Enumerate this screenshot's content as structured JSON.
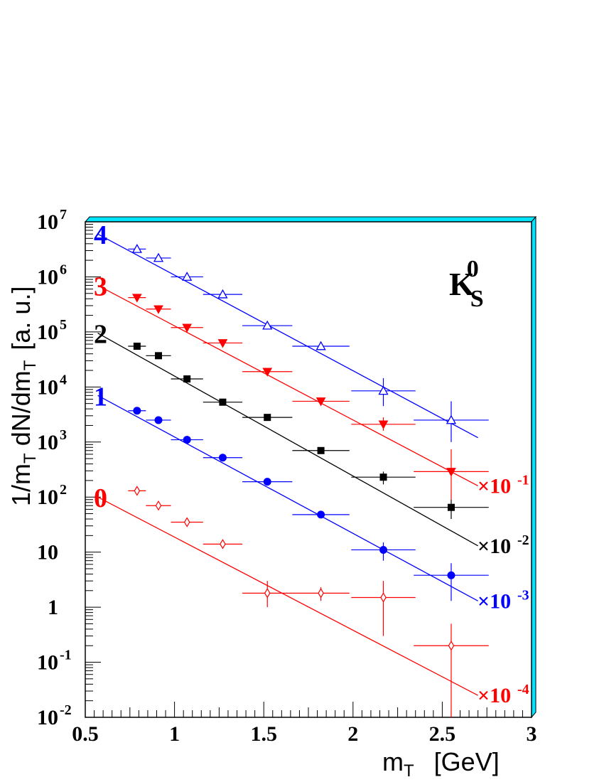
{
  "chart_data": {
    "type": "scatter",
    "title": "",
    "particle_label": {
      "main": "K",
      "sub": "S",
      "sup": "0"
    },
    "xlabel": {
      "main": "m",
      "sub": "T",
      "unit": "[GeV]"
    },
    "ylabel": {
      "main": "1/m",
      "sub1": "T",
      "mid": " dN/dm",
      "sub2": "T",
      "unit": "[a. u.]"
    },
    "xlim": [
      0.5,
      3
    ],
    "ylim": [
      0.01,
      10000000
    ],
    "yscale": "log",
    "x_ticks": [
      {
        "value": 0.5,
        "label": "0.5"
      },
      {
        "value": 1,
        "label": "1"
      },
      {
        "value": 1.5,
        "label": "1.5"
      },
      {
        "value": 2,
        "label": "2"
      },
      {
        "value": 2.5,
        "label": "2.5"
      },
      {
        "value": 3,
        "label": "3"
      }
    ],
    "y_ticks": [
      {
        "value": 10000000,
        "base": "10",
        "exp": "7"
      },
      {
        "value": 1000000,
        "base": "10",
        "exp": "6"
      },
      {
        "value": 100000,
        "base": "10",
        "exp": "5"
      },
      {
        "value": 10000,
        "base": "10",
        "exp": "4"
      },
      {
        "value": 1000,
        "base": "10",
        "exp": "3"
      },
      {
        "value": 100,
        "base": "10",
        "exp": "2"
      },
      {
        "value": 10,
        "base": "10",
        "exp": ""
      },
      {
        "value": 1,
        "base": "1",
        "exp": ""
      },
      {
        "value": 0.1,
        "base": "10",
        "exp": "-1"
      },
      {
        "value": 0.01,
        "base": "10",
        "exp": "-2"
      }
    ],
    "series": [
      {
        "label": "4",
        "color": "#0000ff",
        "marker": "open-triangle",
        "factor": "",
        "fit": {
          "x0": 0.57,
          "y0": 6000000,
          "x1": 2.7,
          "y1": 1200
        },
        "points": [
          {
            "x": 0.79,
            "xerr": 0.05,
            "y": 3200000,
            "yerr_lo": 0,
            "yerr_hi": 0
          },
          {
            "x": 0.91,
            "xerr": 0.07,
            "y": 2200000,
            "yerr_lo": 0,
            "yerr_hi": 0
          },
          {
            "x": 1.07,
            "xerr": 0.09,
            "y": 1000000,
            "yerr_lo": 0,
            "yerr_hi": 0
          },
          {
            "x": 1.27,
            "xerr": 0.11,
            "y": 480000,
            "yerr_lo": 0,
            "yerr_hi": 0
          },
          {
            "x": 1.52,
            "xerr": 0.14,
            "y": 130000,
            "yerr_lo": 0,
            "yerr_hi": 0
          },
          {
            "x": 1.82,
            "xerr": 0.16,
            "y": 55000,
            "yerr_lo": 0,
            "yerr_hi": 0
          },
          {
            "x": 2.17,
            "xerr": 0.18,
            "y": 8500,
            "yerr_lo": 4000,
            "yerr_hi": 6000
          },
          {
            "x": 2.55,
            "xerr": 0.21,
            "y": 2500,
            "yerr_lo": 1500,
            "yerr_hi": 3000
          }
        ]
      },
      {
        "label": "3",
        "color": "#ff0000",
        "marker": "filled-triangle-down",
        "factor": "×10",
        "factor_exp": "-1",
        "fit": {
          "x0": 0.57,
          "y0": 700000,
          "x1": 2.7,
          "y1": 160
        },
        "points": [
          {
            "x": 0.79,
            "xerr": 0.05,
            "y": 420000,
            "yerr_lo": 0,
            "yerr_hi": 0
          },
          {
            "x": 0.91,
            "xerr": 0.07,
            "y": 260000,
            "yerr_lo": 0,
            "yerr_hi": 0
          },
          {
            "x": 1.07,
            "xerr": 0.09,
            "y": 120000,
            "yerr_lo": 0,
            "yerr_hi": 0
          },
          {
            "x": 1.27,
            "xerr": 0.11,
            "y": 63000,
            "yerr_lo": 0,
            "yerr_hi": 0
          },
          {
            "x": 1.52,
            "xerr": 0.14,
            "y": 19000,
            "yerr_lo": 0,
            "yerr_hi": 0
          },
          {
            "x": 1.82,
            "xerr": 0.16,
            "y": 5500,
            "yerr_lo": 0,
            "yerr_hi": 0
          },
          {
            "x": 2.17,
            "xerr": 0.18,
            "y": 2100,
            "yerr_lo": 500,
            "yerr_hi": 700
          },
          {
            "x": 2.55,
            "xerr": 0.21,
            "y": 290,
            "yerr_lo": 200,
            "yerr_hi": 450
          }
        ]
      },
      {
        "label": "2",
        "color": "#000000",
        "marker": "filled-square",
        "factor": "×10",
        "factor_exp": "-2",
        "fit": {
          "x0": 0.57,
          "y0": 95000,
          "x1": 2.7,
          "y1": 13
        },
        "points": [
          {
            "x": 0.79,
            "xerr": 0.05,
            "y": 55000,
            "yerr_lo": 0,
            "yerr_hi": 0
          },
          {
            "x": 0.91,
            "xerr": 0.07,
            "y": 37000,
            "yerr_lo": 0,
            "yerr_hi": 0
          },
          {
            "x": 1.07,
            "xerr": 0.09,
            "y": 14000,
            "yerr_lo": 0,
            "yerr_hi": 0
          },
          {
            "x": 1.27,
            "xerr": 0.11,
            "y": 5300,
            "yerr_lo": 0,
            "yerr_hi": 0
          },
          {
            "x": 1.52,
            "xerr": 0.14,
            "y": 2800,
            "yerr_lo": 0,
            "yerr_hi": 0
          },
          {
            "x": 1.82,
            "xerr": 0.16,
            "y": 700,
            "yerr_lo": 0,
            "yerr_hi": 0
          },
          {
            "x": 2.17,
            "xerr": 0.18,
            "y": 230,
            "yerr_lo": 60,
            "yerr_hi": 60
          },
          {
            "x": 2.55,
            "xerr": 0.21,
            "y": 65,
            "yerr_lo": 25,
            "yerr_hi": 25
          }
        ]
      },
      {
        "label": "1",
        "color": "#0000ff",
        "marker": "filled-circle",
        "factor": "×10",
        "factor_exp": "-3",
        "fit": {
          "x0": 0.57,
          "y0": 7000,
          "x1": 2.7,
          "y1": 1.3
        },
        "points": [
          {
            "x": 0.79,
            "xerr": 0.05,
            "y": 3700,
            "yerr_lo": 0,
            "yerr_hi": 0
          },
          {
            "x": 0.91,
            "xerr": 0.07,
            "y": 2500,
            "yerr_lo": 0,
            "yerr_hi": 0
          },
          {
            "x": 1.07,
            "xerr": 0.09,
            "y": 1100,
            "yerr_lo": 0,
            "yerr_hi": 0
          },
          {
            "x": 1.27,
            "xerr": 0.11,
            "y": 520,
            "yerr_lo": 0,
            "yerr_hi": 0
          },
          {
            "x": 1.52,
            "xerr": 0.14,
            "y": 190,
            "yerr_lo": 0,
            "yerr_hi": 0
          },
          {
            "x": 1.82,
            "xerr": 0.16,
            "y": 48,
            "yerr_lo": 0,
            "yerr_hi": 0
          },
          {
            "x": 2.17,
            "xerr": 0.18,
            "y": 11,
            "yerr_lo": 4,
            "yerr_hi": 4
          },
          {
            "x": 2.55,
            "xerr": 0.21,
            "y": 3.8,
            "yerr_lo": 2.5,
            "yerr_hi": 2.5
          }
        ]
      },
      {
        "label": "0",
        "color": "#ff0000",
        "marker": "open-diamond",
        "factor": "×10",
        "factor_exp": "-4",
        "fit": {
          "x0": 0.57,
          "y0": 100,
          "x1": 2.7,
          "y1": 0.025
        },
        "points": [
          {
            "x": 0.79,
            "xerr": 0.05,
            "y": 130,
            "yerr_lo": 0,
            "yerr_hi": 0
          },
          {
            "x": 0.91,
            "xerr": 0.07,
            "y": 70,
            "yerr_lo": 0,
            "yerr_hi": 0
          },
          {
            "x": 1.07,
            "xerr": 0.09,
            "y": 35,
            "yerr_lo": 0,
            "yerr_hi": 0
          },
          {
            "x": 1.27,
            "xerr": 0.11,
            "y": 14,
            "yerr_lo": 0,
            "yerr_hi": 0
          },
          {
            "x": 1.52,
            "xerr": 0.14,
            "y": 1.8,
            "yerr_lo": 0.8,
            "yerr_hi": 1.2
          },
          {
            "x": 1.82,
            "xerr": 0.16,
            "y": 1.8,
            "yerr_lo": 0.5,
            "yerr_hi": 0.5
          },
          {
            "x": 2.17,
            "xerr": 0.18,
            "y": 1.5,
            "yerr_lo": 1.2,
            "yerr_hi": 1.5
          },
          {
            "x": 2.55,
            "xerr": 0.21,
            "y": 0.2,
            "yerr_lo": 0.19,
            "yerr_hi": 0.3
          }
        ]
      }
    ],
    "frame_color": "#00e5ff"
  }
}
